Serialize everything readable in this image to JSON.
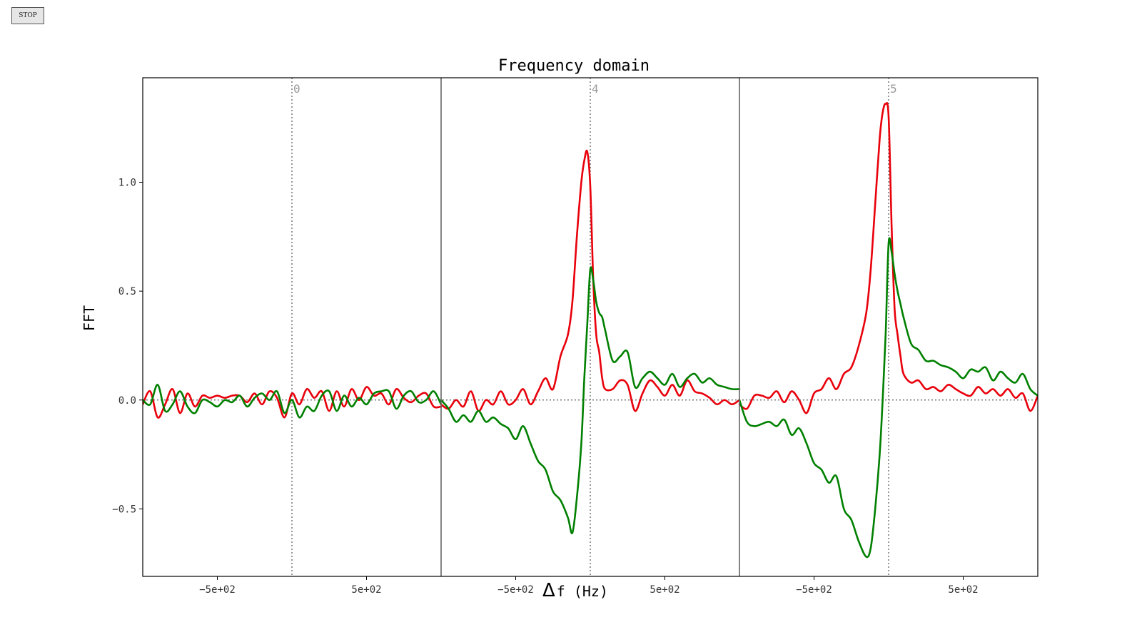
{
  "toolbar": {
    "stop_label": "STOP"
  },
  "chart_data": {
    "type": "line",
    "title": "Frequency domain",
    "xlabel_symbol": "Δ",
    "xlabel_rest": "f (Hz)",
    "ylabel": "FFT",
    "ylim": [
      -0.81,
      1.48
    ],
    "yticks": [
      -0.5,
      0.0,
      0.5,
      1.0
    ],
    "ytick_labels": [
      "−0.5",
      "0.0",
      "0.5",
      "1.0"
    ],
    "grid": false,
    "panels": [
      {
        "label": "0",
        "xlim": [
          -1000,
          1000
        ],
        "xticks": [
          -500,
          500
        ],
        "xtick_labels": [
          "−5e+02",
          "5e+02"
        ],
        "series": [
          {
            "color": "#e8000b",
            "x": [
              -1000,
              -950,
              -900,
              -850,
              -800,
              -750,
              -700,
              -650,
              -600,
              -550,
              -500,
              -450,
              -400,
              -350,
              -300,
              -250,
              -200,
              -150,
              -100,
              -50,
              0,
              50,
              100,
              150,
              200,
              250,
              300,
              350,
              400,
              450,
              500,
              550,
              600,
              650,
              700,
              750,
              800,
              850,
              900,
              950,
              1000
            ],
            "y": [
              -0.02,
              0.04,
              -0.08,
              -0.02,
              0.05,
              -0.06,
              0.03,
              -0.03,
              0.02,
              0.01,
              0.02,
              0.01,
              0.02,
              0.02,
              -0.01,
              0.03,
              -0.02,
              0.04,
              0.01,
              -0.08,
              0.03,
              -0.02,
              0.05,
              0.01,
              0.04,
              -0.05,
              0.04,
              -0.03,
              0.05,
              0.0,
              0.06,
              0.02,
              0.03,
              -0.02,
              0.05,
              0.01,
              -0.01,
              0.02,
              0.03,
              -0.03,
              -0.03
            ]
          },
          {
            "color": "#008000",
            "x": [
              -1000,
              -950,
              -900,
              -850,
              -800,
              -750,
              -700,
              -650,
              -600,
              -550,
              -500,
              -450,
              -400,
              -350,
              -300,
              -250,
              -200,
              -150,
              -100,
              -50,
              0,
              50,
              100,
              150,
              200,
              250,
              300,
              350,
              400,
              450,
              500,
              550,
              600,
              650,
              700,
              750,
              800,
              850,
              900,
              950,
              1000
            ],
            "y": [
              0.0,
              -0.02,
              0.07,
              -0.05,
              -0.02,
              0.04,
              -0.03,
              -0.06,
              0.0,
              -0.01,
              -0.03,
              0.0,
              -0.01,
              0.02,
              -0.03,
              0.01,
              0.03,
              0.0,
              0.04,
              -0.06,
              0.0,
              -0.08,
              -0.03,
              -0.05,
              0.02,
              0.04,
              -0.05,
              0.02,
              -0.03,
              0.01,
              -0.02,
              0.03,
              0.04,
              0.04,
              -0.04,
              0.02,
              0.04,
              -0.01,
              0.0,
              0.04,
              -0.02
            ]
          }
        ]
      },
      {
        "label": "4",
        "xlim": [
          -1000,
          1000
        ],
        "xticks": [
          -500,
          500
        ],
        "xtick_labels": [
          "−5e+02",
          "5e+02"
        ],
        "series": [
          {
            "color": "#e8000b",
            "x": [
              -1000,
              -950,
              -900,
              -850,
              -800,
              -750,
              -700,
              -650,
              -600,
              -550,
              -500,
              -450,
              -400,
              -350,
              -300,
              -250,
              -200,
              -150,
              -120,
              -90,
              -60,
              -40,
              -20,
              0,
              20,
              40,
              60,
              80,
              100,
              150,
              200,
              250,
              300,
              350,
              400,
              450,
              500,
              550,
              600,
              650,
              700,
              750,
              800,
              850,
              900,
              950,
              1000
            ],
            "y": [
              -0.02,
              -0.04,
              0.0,
              -0.03,
              0.04,
              -0.05,
              0.0,
              -0.02,
              0.04,
              -0.02,
              0.0,
              0.05,
              -0.02,
              0.04,
              0.1,
              0.05,
              0.2,
              0.3,
              0.45,
              0.75,
              1.0,
              1.1,
              1.14,
              0.98,
              0.55,
              0.3,
              0.22,
              0.1,
              0.05,
              0.05,
              0.09,
              0.07,
              -0.05,
              0.03,
              0.09,
              0.06,
              0.02,
              0.07,
              0.02,
              0.09,
              0.04,
              0.03,
              0.01,
              -0.02,
              0.0,
              -0.02,
              0.0
            ]
          },
          {
            "color": "#008000",
            "x": [
              -1000,
              -950,
              -900,
              -850,
              -800,
              -750,
              -700,
              -650,
              -600,
              -550,
              -500,
              -450,
              -400,
              -350,
              -300,
              -250,
              -200,
              -150,
              -120,
              -90,
              -60,
              -40,
              -20,
              0,
              20,
              40,
              60,
              80,
              100,
              150,
              200,
              250,
              300,
              350,
              400,
              450,
              500,
              550,
              600,
              650,
              700,
              750,
              800,
              850,
              900,
              950,
              1000
            ],
            "y": [
              0.0,
              -0.04,
              -0.1,
              -0.07,
              -0.1,
              -0.05,
              -0.1,
              -0.08,
              -0.11,
              -0.13,
              -0.18,
              -0.12,
              -0.2,
              -0.28,
              -0.32,
              -0.42,
              -0.46,
              -0.54,
              -0.61,
              -0.45,
              -0.2,
              0.1,
              0.35,
              0.6,
              0.55,
              0.45,
              0.4,
              0.38,
              0.32,
              0.18,
              0.2,
              0.22,
              0.06,
              0.1,
              0.13,
              0.1,
              0.07,
              0.12,
              0.06,
              0.1,
              0.12,
              0.08,
              0.1,
              0.07,
              0.06,
              0.05,
              0.05
            ]
          }
        ]
      },
      {
        "label": "5",
        "xlim": [
          -1000,
          1000
        ],
        "xticks": [
          -500,
          500
        ],
        "xtick_labels": [
          "−5e+02",
          "5e+02"
        ],
        "series": [
          {
            "color": "#e8000b",
            "x": [
              -1000,
              -950,
              -900,
              -850,
              -800,
              -750,
              -700,
              -650,
              -600,
              -550,
              -500,
              -450,
              -400,
              -350,
              -300,
              -250,
              -200,
              -150,
              -120,
              -90,
              -60,
              -40,
              -20,
              0,
              20,
              40,
              60,
              80,
              100,
              150,
              200,
              250,
              300,
              350,
              400,
              450,
              500,
              550,
              600,
              650,
              700,
              750,
              800,
              850,
              900,
              950,
              1000
            ],
            "y": [
              -0.02,
              -0.04,
              0.02,
              0.02,
              0.01,
              0.04,
              -0.01,
              0.04,
              0.0,
              -0.06,
              0.03,
              0.05,
              0.1,
              0.05,
              0.12,
              0.15,
              0.25,
              0.4,
              0.6,
              0.9,
              1.2,
              1.32,
              1.36,
              1.3,
              0.8,
              0.42,
              0.3,
              0.2,
              0.12,
              0.08,
              0.09,
              0.05,
              0.06,
              0.04,
              0.07,
              0.05,
              0.03,
              0.02,
              0.06,
              0.03,
              0.05,
              0.02,
              0.05,
              0.01,
              0.03,
              -0.05,
              0.02
            ]
          },
          {
            "color": "#008000",
            "x": [
              -1000,
              -950,
              -900,
              -850,
              -800,
              -750,
              -700,
              -650,
              -600,
              -550,
              -500,
              -450,
              -400,
              -350,
              -300,
              -250,
              -200,
              -150,
              -120,
              -90,
              -60,
              -40,
              -20,
              0,
              20,
              40,
              60,
              80,
              100,
              150,
              200,
              250,
              300,
              350,
              400,
              450,
              500,
              550,
              600,
              650,
              700,
              750,
              800,
              850,
              900,
              950,
              1000
            ],
            "y": [
              0.0,
              -0.1,
              -0.12,
              -0.11,
              -0.1,
              -0.12,
              -0.09,
              -0.16,
              -0.13,
              -0.2,
              -0.29,
              -0.32,
              -0.38,
              -0.35,
              -0.5,
              -0.55,
              -0.65,
              -0.72,
              -0.68,
              -0.5,
              -0.25,
              0.0,
              0.3,
              0.72,
              0.68,
              0.58,
              0.5,
              0.44,
              0.38,
              0.26,
              0.23,
              0.18,
              0.18,
              0.16,
              0.15,
              0.13,
              0.1,
              0.14,
              0.13,
              0.15,
              0.09,
              0.13,
              0.1,
              0.08,
              0.12,
              0.05,
              0.02
            ]
          }
        ]
      }
    ]
  }
}
